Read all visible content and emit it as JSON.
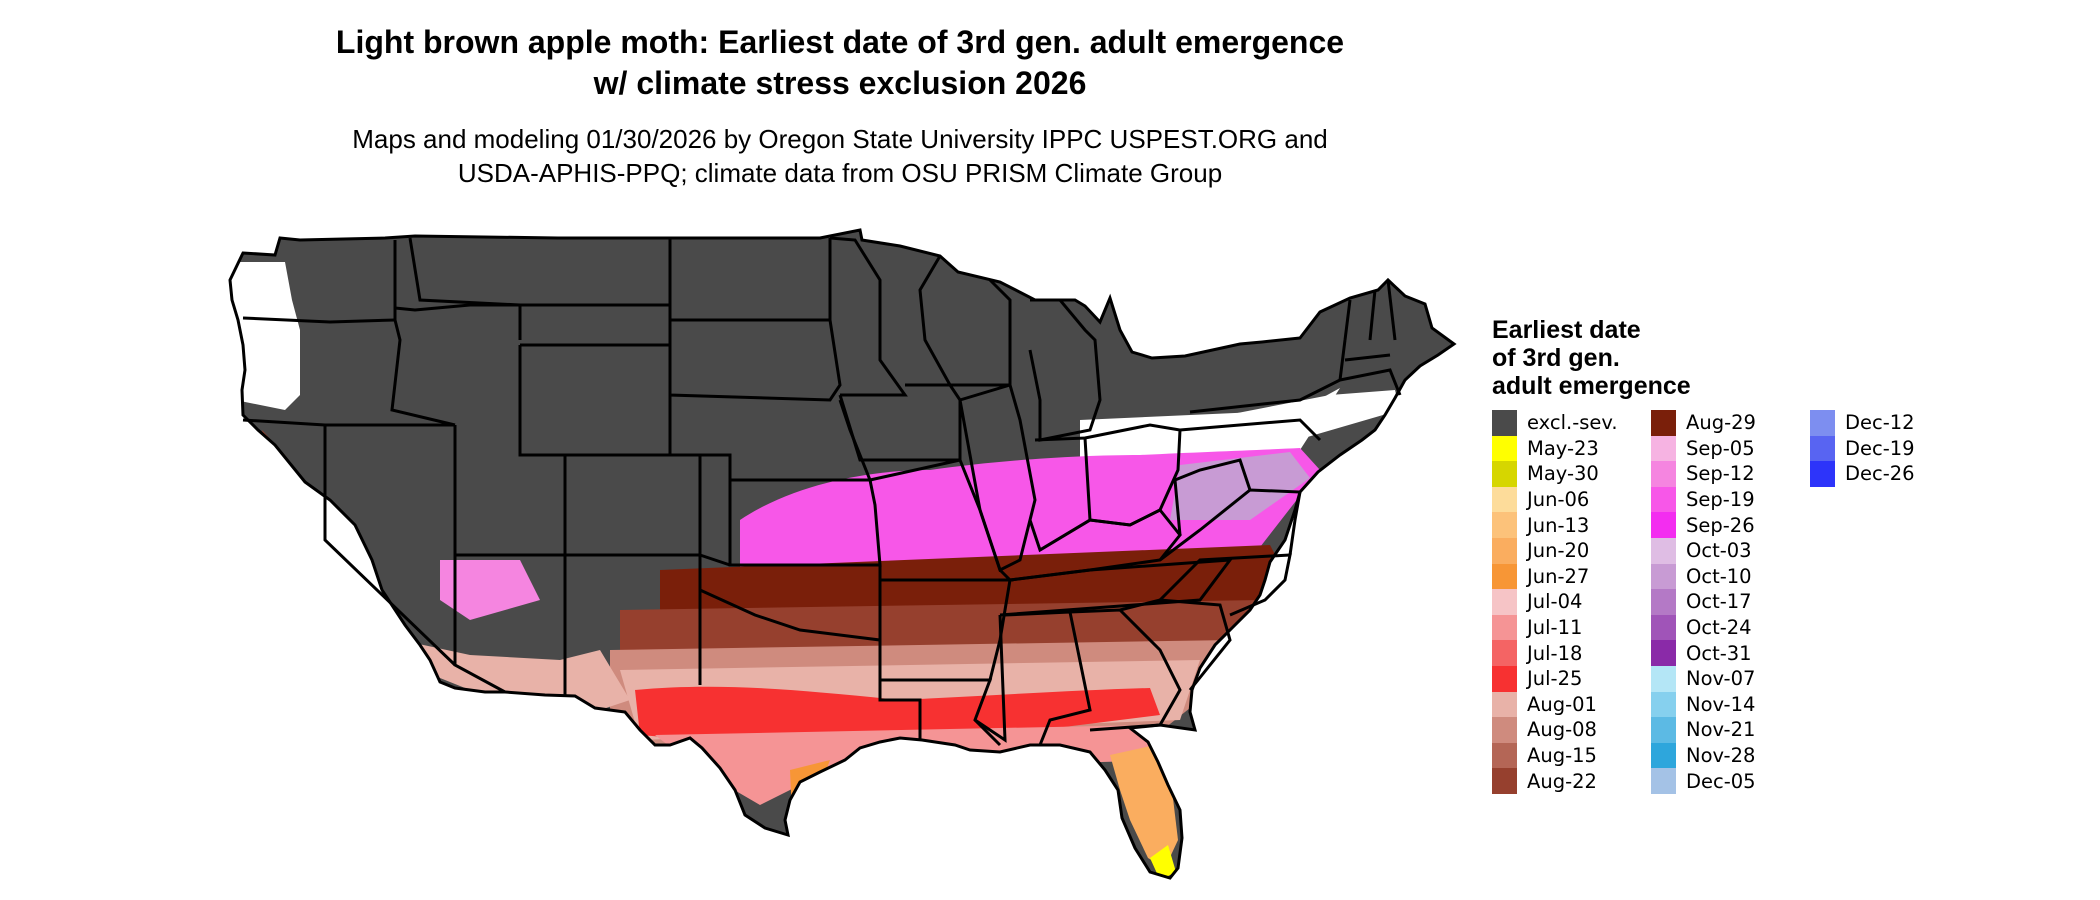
{
  "title_line1": "Light brown apple moth: Earliest date of 3rd gen. adult emergence",
  "title_line2": "w/ climate stress exclusion 2026",
  "subtitle_line1": "Maps and modeling 01/30/2026 by Oregon State University IPPC USPEST.ORG and",
  "subtitle_line2": "USDA-APHIS-PPQ; climate data from OSU PRISM Climate Group",
  "legend": {
    "title_line1": "Earliest date",
    "title_line2": "of 3rd gen.",
    "title_line3": "adult emergence",
    "columns": [
      [
        {
          "label": "excl.-sev.",
          "color": "#4a4a4a"
        },
        {
          "label": "May-23",
          "color": "#ffff00"
        },
        {
          "label": "May-30",
          "color": "#d6d600"
        },
        {
          "label": "Jun-06",
          "color": "#fddc9a"
        },
        {
          "label": "Jun-13",
          "color": "#fcc27a"
        },
        {
          "label": "Jun-20",
          "color": "#faad5f"
        },
        {
          "label": "Jun-27",
          "color": "#f79636"
        },
        {
          "label": "Jul-04",
          "color": "#f6c4c6"
        },
        {
          "label": "Jul-11",
          "color": "#f59495"
        },
        {
          "label": "Jul-18",
          "color": "#f46464"
        },
        {
          "label": "Jul-25",
          "color": "#f73131"
        },
        {
          "label": "Aug-01",
          "color": "#e8b2a8"
        },
        {
          "label": "Aug-08",
          "color": "#cf8b7e"
        },
        {
          "label": "Aug-15",
          "color": "#b46656"
        },
        {
          "label": "Aug-22",
          "color": "#96402e"
        }
      ],
      [
        {
          "label": "Aug-29",
          "color": "#7a1f0a"
        },
        {
          "label": "Sep-05",
          "color": "#f6b3e2"
        },
        {
          "label": "Sep-12",
          "color": "#f585e0"
        },
        {
          "label": "Sep-19",
          "color": "#f757e8"
        },
        {
          "label": "Sep-26",
          "color": "#f32df0"
        },
        {
          "label": "Oct-03",
          "color": "#dfbde4"
        },
        {
          "label": "Oct-10",
          "color": "#c89bd4"
        },
        {
          "label": "Oct-17",
          "color": "#b479c6"
        },
        {
          "label": "Oct-24",
          "color": "#a054b8"
        },
        {
          "label": "Oct-31",
          "color": "#8a2aa8"
        },
        {
          "label": "Nov-07",
          "color": "#b4e6f6"
        },
        {
          "label": "Nov-14",
          "color": "#86d0ee"
        },
        {
          "label": "Nov-21",
          "color": "#5cbae4"
        },
        {
          "label": "Nov-28",
          "color": "#2ea6dc"
        },
        {
          "label": "Dec-05",
          "color": "#a4c2e6"
        }
      ],
      [
        {
          "label": "Dec-12",
          "color": "#7d8ef0"
        },
        {
          "label": "Dec-19",
          "color": "#5864f2"
        },
        {
          "label": "Dec-26",
          "color": "#2d34fa"
        }
      ]
    ]
  }
}
